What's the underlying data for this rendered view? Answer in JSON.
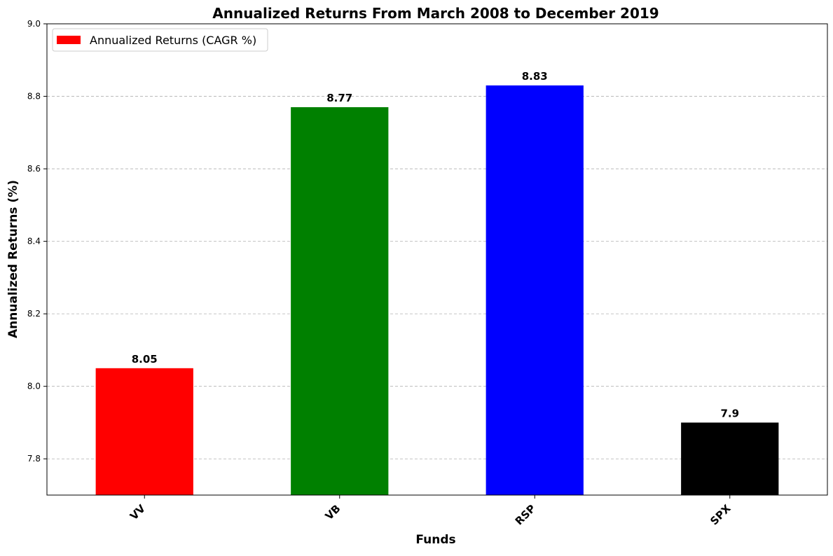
{
  "chart_data": {
    "type": "bar",
    "title": "Annualized Returns From March 2008 to December 2019",
    "xlabel": "Funds",
    "ylabel": "Annualized Returns (%)",
    "categories": [
      "VV",
      "VB",
      "RSP",
      "SPX"
    ],
    "series": [
      {
        "name": "Annualized Returns (CAGR %)",
        "values": [
          8.05,
          8.77,
          8.83,
          7.9
        ],
        "colors": [
          "#ff0000",
          "#008000",
          "#0000ff",
          "#000000"
        ]
      }
    ],
    "data_labels": [
      "8.05",
      "8.77",
      "8.83",
      "7.9"
    ],
    "ylim": [
      7.7,
      9.0
    ],
    "yticks": [
      "7.8",
      "8.0",
      "8.2",
      "8.4",
      "8.6",
      "8.8",
      "9.0"
    ],
    "ytick_values": [
      7.8,
      8.0,
      8.2,
      8.4,
      8.6,
      8.8,
      9.0
    ],
    "grid": "y",
    "legend_position": "top-left",
    "legend_color": "#ff0000"
  }
}
